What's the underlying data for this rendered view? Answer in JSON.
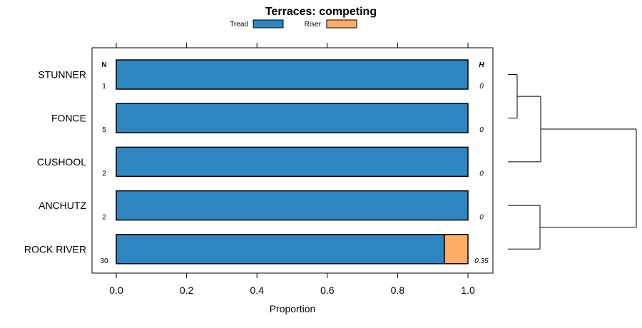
{
  "chart_data": {
    "type": "bar",
    "orientation": "horizontal",
    "stacked": true,
    "title": "Terraces: competing",
    "xlabel": "Proportion",
    "ylabel": "",
    "xlim": [
      0,
      1
    ],
    "x_ticks": [
      "0.0",
      "0.2",
      "0.4",
      "0.6",
      "0.8",
      "1.0"
    ],
    "categories": [
      "STUNNER",
      "FONCE",
      "CUSHOOL",
      "ANCHUTZ",
      "ROCK RIVER"
    ],
    "series": [
      {
        "name": "Tread",
        "color": "#2e86c1",
        "values": [
          1.0,
          1.0,
          1.0,
          1.0,
          0.933
        ]
      },
      {
        "name": "Riser",
        "color": "#ffad66",
        "values": [
          0.0,
          0.0,
          0.0,
          0.0,
          0.067
        ]
      }
    ],
    "n_header": "N",
    "n_values": [
      "1",
      "5",
      "2",
      "2",
      "30"
    ],
    "h_header": "H",
    "h_values": [
      "0",
      "0",
      "0",
      "0",
      "0.35"
    ],
    "legend_position": "top",
    "grid": false,
    "dendrogram": true
  }
}
